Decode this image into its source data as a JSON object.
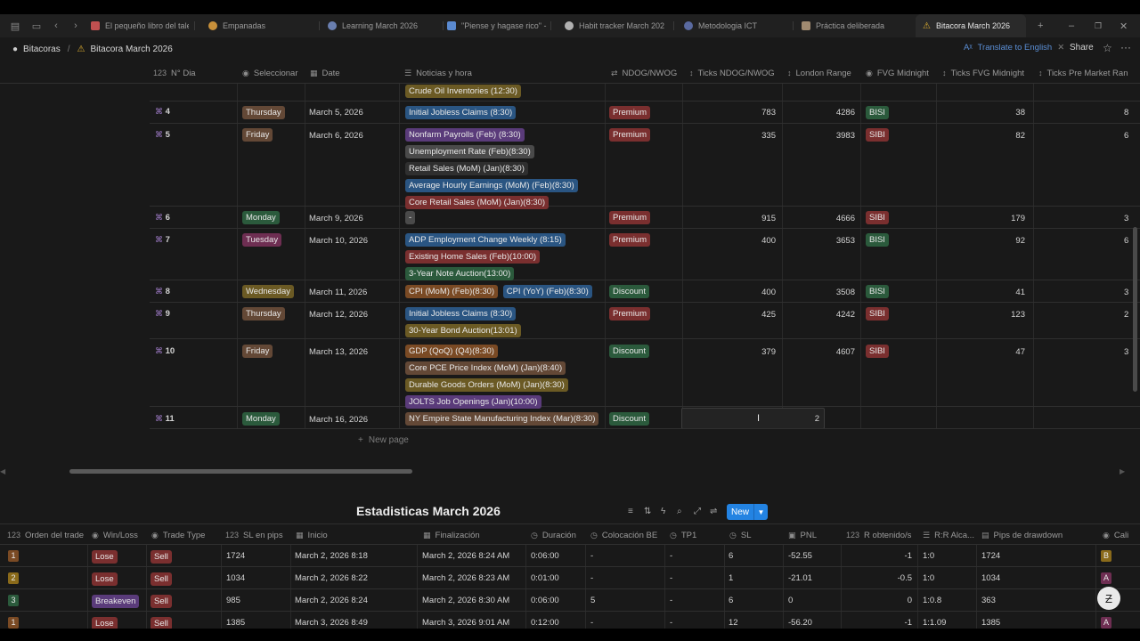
{
  "tabs": [
    {
      "label": "El pequeño libro del tale",
      "icon": "book-icon",
      "color": "#c05050"
    },
    {
      "label": "Empanadas",
      "icon": "empanada-icon",
      "color": "#c8903a"
    },
    {
      "label": "Learning March 2026",
      "icon": "globe-icon",
      "color": "#6a7fb0"
    },
    {
      "label": "\"Piense y hagase rico\" -",
      "icon": "document-icon",
      "color": "#5a8ad0"
    },
    {
      "label": "Habit tracker March 202",
      "icon": "habit-icon",
      "color": "#b0b0b0"
    },
    {
      "label": "Metodologia ICT",
      "icon": "globe-icon",
      "color": "#5a6aa0"
    },
    {
      "label": "Práctica deliberada",
      "icon": "practice-icon",
      "color": "#a08a70"
    },
    {
      "label": "Bitacora March 2026",
      "icon": "warning-icon",
      "color": "#e0b030"
    }
  ],
  "breadcrumb": {
    "root": "Bitacoras",
    "separator": "/",
    "page": "Bitacora March 2026"
  },
  "translate_label": "Translate to English",
  "share_label": "Share",
  "top_table": {
    "headers": [
      "N° Dia",
      "Seleccionar",
      "Date",
      "Noticias y hora",
      "NDOG/NWOG",
      "Ticks NDOG/NWOG",
      "London Range",
      "FVG Midnight",
      "Ticks FVG Midnight",
      "Ticks Pre Market Ran"
    ],
    "header_prefix": "123",
    "partial_news": "Crude Oil Inventories (12:30)",
    "rows": [
      {
        "day": "4",
        "weekday": "Thursday",
        "date": "March 5, 2026",
        "news": [
          "Initial Jobless Claims (8:30)"
        ],
        "ndog": "Premium",
        "ticks": "783",
        "london": "4286",
        "fvg": "BISI",
        "ticks_fvg": "38",
        "premkt": "8"
      },
      {
        "day": "5",
        "weekday": "Friday",
        "date": "March 6, 2026",
        "news": [
          "Nonfarm Payrolls (Feb) (8:30)",
          "Unemployment Rate (Feb)(8:30)",
          "Retail Sales (MoM) (Jan)(8:30)",
          "Average Hourly Earnings (MoM) (Feb)(8:30)",
          "Core Retail Sales (MoM) (Jan)(8:30)"
        ],
        "ndog": "Premium",
        "ticks": "335",
        "london": "3983",
        "fvg": "SIBI",
        "ticks_fvg": "82",
        "premkt": "6"
      },
      {
        "day": "6",
        "weekday": "Monday",
        "date": "March 9, 2026",
        "news": [
          "-"
        ],
        "ndog": "Premium",
        "ticks": "915",
        "london": "4666",
        "fvg": "SIBI",
        "ticks_fvg": "179",
        "premkt": "3"
      },
      {
        "day": "7",
        "weekday": "Tuesday",
        "date": "March 10, 2026",
        "news": [
          "ADP Employment Change Weekly (8:15)",
          "Existing Home Sales (Feb)(10:00)",
          "3-Year Note Auction(13:00)"
        ],
        "ndog": "Premium",
        "ticks": "400",
        "london": "3653",
        "fvg": "BISI",
        "ticks_fvg": "92",
        "premkt": "6"
      },
      {
        "day": "8",
        "weekday": "Wednesday",
        "date": "March 11, 2026",
        "news": [
          "CPI (MoM) (Feb)(8:30)",
          "CPI (YoY) (Feb)(8:30)"
        ],
        "ndog": "Discount",
        "ticks": "400",
        "london": "3508",
        "fvg": "BISI",
        "ticks_fvg": "41",
        "premkt": "3"
      },
      {
        "day": "9",
        "weekday": "Thursday",
        "date": "March 12, 2026",
        "news": [
          "Initial Jobless Claims (8:30)",
          "30-Year Bond Auction(13:01)"
        ],
        "ndog": "Premium",
        "ticks": "425",
        "london": "4242",
        "fvg": "SIBI",
        "ticks_fvg": "123",
        "premkt": "2"
      },
      {
        "day": "10",
        "weekday": "Friday",
        "date": "March 13, 2026",
        "news": [
          "GDP (QoQ) (Q4)(8:30)",
          "Core PCE Price Index (MoM) (Jan)(8:40)",
          "Durable Goods Orders (MoM) (Jan)(8:30)",
          "JOLTS Job Openings (Jan)(10:00)"
        ],
        "ndog": "Discount",
        "ticks": "379",
        "london": "4607",
        "fvg": "SIBI",
        "ticks_fvg": "47",
        "premkt": "3"
      },
      {
        "day": "11",
        "weekday": "Monday",
        "date": "March 16, 2026",
        "news": [
          "NY Empire State Manufacturing Index (Mar)(8:30)"
        ],
        "ndog": "Discount",
        "ticks": "2",
        "london": "",
        "fvg": "",
        "ticks_fvg": "",
        "premkt": ""
      }
    ],
    "new_page_label": "New page"
  },
  "stats": {
    "title": "Estadisticas March 2026",
    "new_label": "New",
    "headers": [
      "Orden del trade",
      "Win/Loss",
      "Trade Type",
      "SL en pips",
      "Inicio",
      "Finalización",
      "Duración",
      "Colocación BE",
      "TP1",
      "SL",
      "PNL",
      "R obtenido/s",
      "R:R Alca...",
      "Pips de drawdown",
      "Cali"
    ],
    "rows": [
      {
        "orden": "1",
        "wl": "Lose",
        "type": "Sell",
        "sl_pips": "1724",
        "inicio": "March 2, 2026 8:18",
        "fin": "March 2, 2026 8:24 AM",
        "dur": "0:06:00",
        "be": "-",
        "tp1": "-",
        "sl": "6",
        "pnl": "-52.55",
        "r": "-1",
        "rr": "1:0",
        "dd": "1724",
        "cal": "B"
      },
      {
        "orden": "2",
        "wl": "Lose",
        "type": "Sell",
        "sl_pips": "1034",
        "inicio": "March 2, 2026 8:22",
        "fin": "March 2, 2026 8:23 AM",
        "dur": "0:01:00",
        "be": "-",
        "tp1": "-",
        "sl": "1",
        "pnl": "-21.01",
        "r": "-0.5",
        "rr": "1:0",
        "dd": "1034",
        "cal": "A"
      },
      {
        "orden": "3",
        "wl": "Breakeven",
        "type": "Sell",
        "sl_pips": "985",
        "inicio": "March 2, 2026 8:24",
        "fin": "March 2, 2026 8:30 AM",
        "dur": "0:06:00",
        "be": "5",
        "tp1": "-",
        "sl": "6",
        "pnl": "0",
        "r": "0",
        "rr": "1:0.8",
        "dd": "363",
        "cal": "A"
      },
      {
        "orden": "1",
        "wl": "Lose",
        "type": "Sell",
        "sl_pips": "1385",
        "inicio": "March 3, 2026 8:49",
        "fin": "March 3, 2026 9:01 AM",
        "dur": "0:12:00",
        "be": "-",
        "tp1": "-",
        "sl": "12",
        "pnl": "-56.20",
        "r": "-1",
        "rr": "1:1.09",
        "dd": "1385",
        "cal": "A"
      }
    ]
  },
  "colors": {
    "accent": "#2383e2",
    "background": "#191919"
  }
}
